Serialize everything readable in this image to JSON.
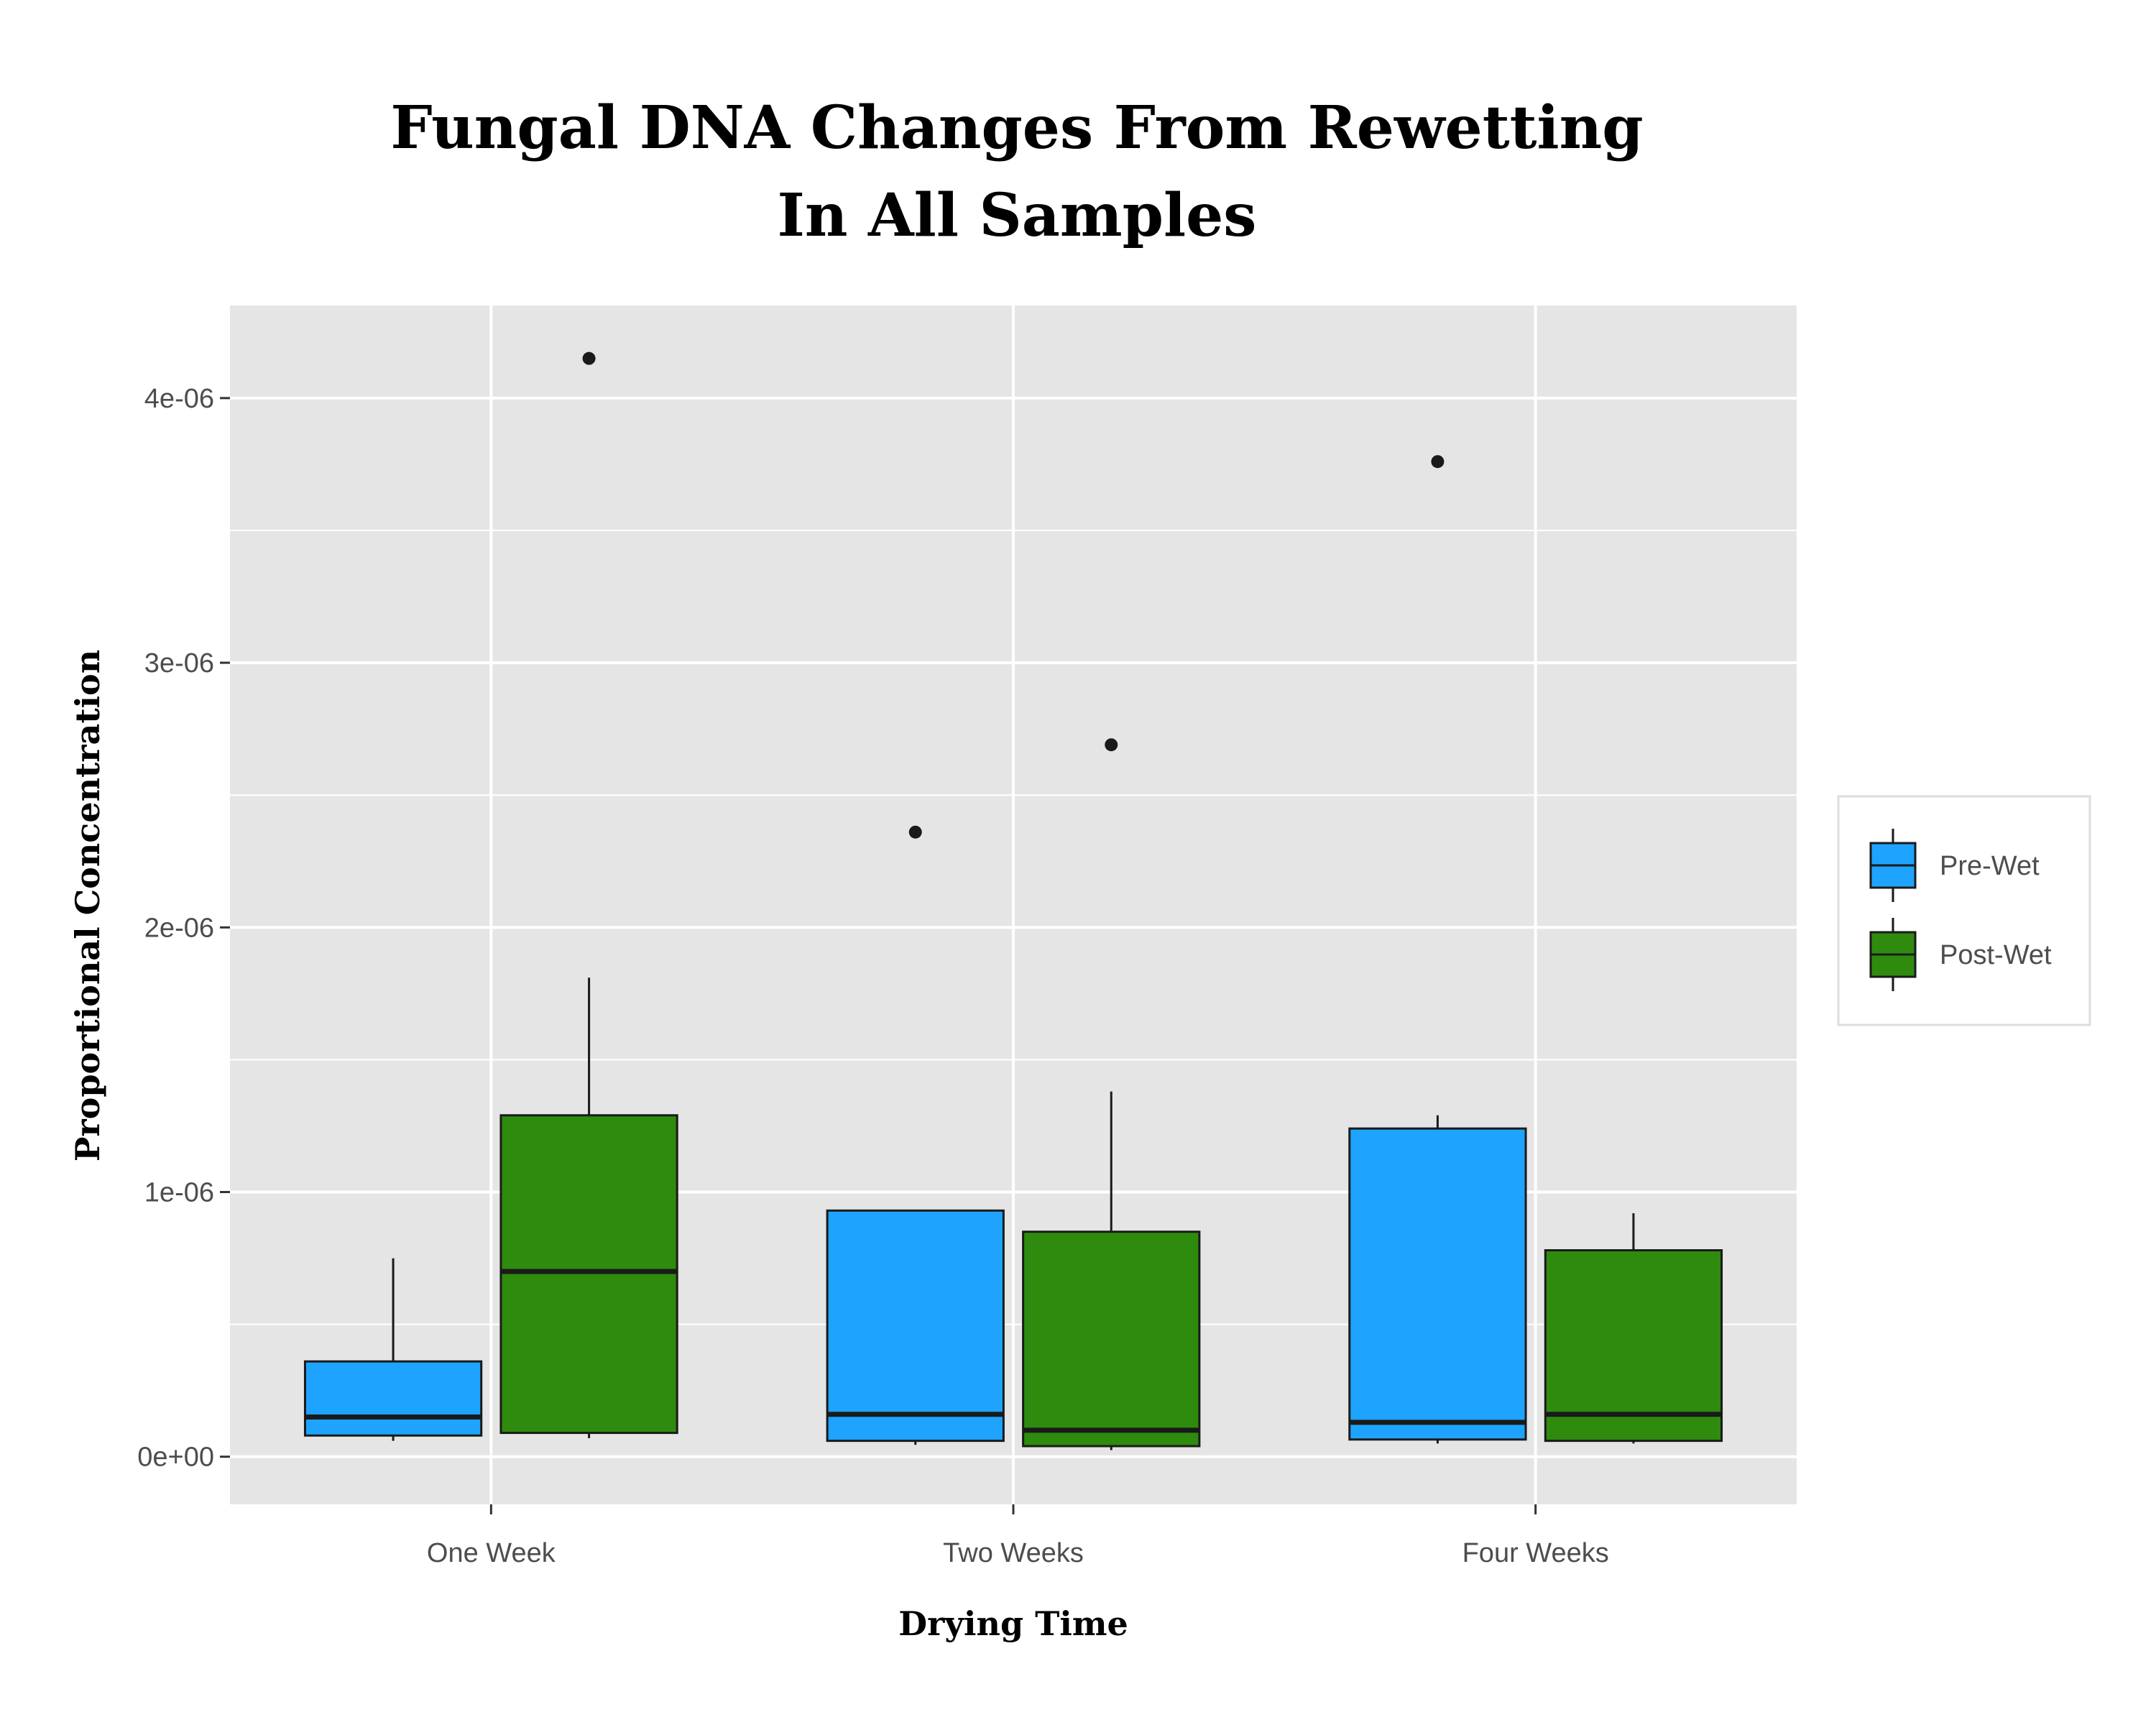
{
  "chart_data": {
    "type": "box",
    "title": [
      "Fungal DNA Changes From Rewetting",
      "In All Samples"
    ],
    "xlabel": "Drying Time",
    "ylabel": "Proportional Concentration",
    "categories": [
      "One Week",
      "Two Weeks",
      "Four Weeks"
    ],
    "ylim": [
      -1.8e-07,
      4.35e-06
    ],
    "yticks": [
      0,
      1e-06,
      2e-06,
      3e-06,
      4e-06
    ],
    "ytick_labels": [
      "0e+00",
      "1e-06",
      "2e-06",
      "3e-06",
      "4e-06"
    ],
    "grid": true,
    "legend_position": "right",
    "series": [
      {
        "name": "Pre-Wet",
        "color": "#1ea4ff",
        "boxes": [
          {
            "category": "One Week",
            "whisker_low": 6e-08,
            "q1": 8e-08,
            "median": 1.5e-07,
            "q3": 3.6e-07,
            "whisker_high": 7.5e-07,
            "outliers": []
          },
          {
            "category": "Two Weeks",
            "whisker_low": 4.5e-08,
            "q1": 6e-08,
            "median": 1.6e-07,
            "q3": 9.3e-07,
            "whisker_high": 9.3e-07,
            "outliers": [
              2.36e-06
            ]
          },
          {
            "category": "Four Weeks",
            "whisker_low": 5e-08,
            "q1": 6.5e-08,
            "median": 1.3e-07,
            "q3": 1.24e-06,
            "whisker_high": 1.29e-06,
            "outliers": [
              3.76e-06
            ]
          }
        ]
      },
      {
        "name": "Post-Wet",
        "color": "#2e8b0e",
        "boxes": [
          {
            "category": "One Week",
            "whisker_low": 7e-08,
            "q1": 9e-08,
            "median": 7e-07,
            "q3": 1.29e-06,
            "whisker_high": 1.81e-06,
            "outliers": [
              4.15e-06
            ]
          },
          {
            "category": "Two Weeks",
            "whisker_low": 2.5e-08,
            "q1": 4e-08,
            "median": 1e-07,
            "q3": 8.5e-07,
            "whisker_high": 1.38e-06,
            "outliers": [
              2.69e-06
            ]
          },
          {
            "category": "Four Weeks",
            "whisker_low": 5e-08,
            "q1": 6e-08,
            "median": 1.6e-07,
            "q3": 7.8e-07,
            "whisker_high": 9.2e-07,
            "outliers": []
          }
        ]
      }
    ]
  },
  "style": {
    "panel_bg": "#e5e5e5",
    "grid_color": "#ffffff",
    "box_border": "#1a1a1a",
    "outlier_color": "#1a1a1a"
  }
}
